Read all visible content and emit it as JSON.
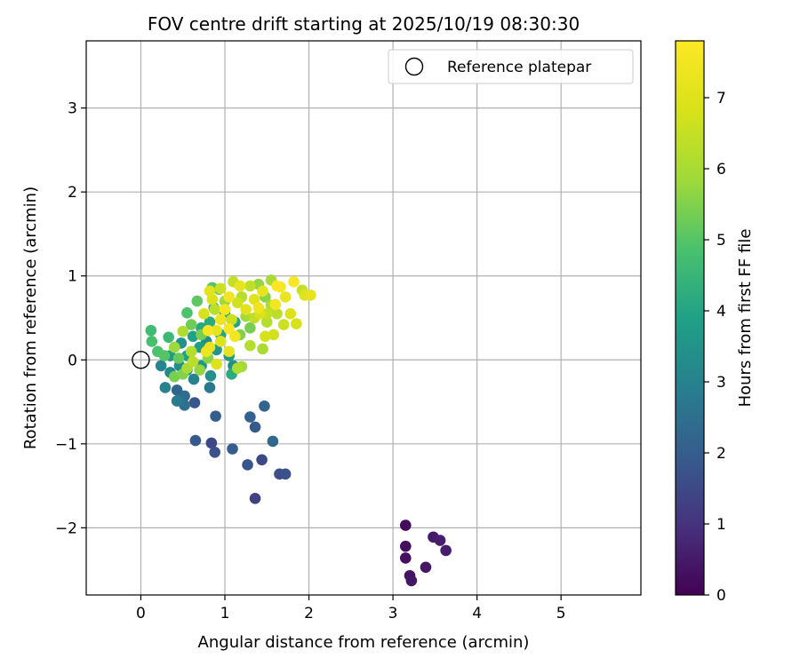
{
  "chart_data": {
    "type": "scatter",
    "title": "FOV centre drift starting at 2025/10/19 08:30:30",
    "xlabel": "Angular distance from reference (arcmin)",
    "ylabel": "Rotation from reference (arcmin)",
    "xlim": [
      -0.65,
      5.95
    ],
    "ylim": [
      -2.8,
      3.8
    ],
    "xticks": [
      0,
      1,
      2,
      3,
      4,
      5
    ],
    "yticks": [
      -2,
      -1,
      0,
      1,
      2,
      3
    ],
    "grid": true,
    "legend": {
      "position": "top-right",
      "entries": [
        {
          "label": "Reference platepar",
          "marker": "open-circle"
        }
      ]
    },
    "reference": {
      "x": 0,
      "y": 0
    },
    "colorbar": {
      "label": "Hours from first FF file",
      "min": 0,
      "max": 7.8,
      "ticks": [
        0,
        1,
        2,
        3,
        4,
        5,
        6,
        7
      ],
      "colormap": "viridis"
    },
    "points": [
      {
        "x": 3.15,
        "y": -1.97,
        "c": 0.2
      },
      {
        "x": 3.15,
        "y": -2.22,
        "c": 0.25
      },
      {
        "x": 3.15,
        "y": -2.36,
        "c": 0.3
      },
      {
        "x": 3.2,
        "y": -2.57,
        "c": 0.35
      },
      {
        "x": 3.22,
        "y": -2.63,
        "c": 0.4
      },
      {
        "x": 3.39,
        "y": -2.47,
        "c": 0.45
      },
      {
        "x": 3.48,
        "y": -2.11,
        "c": 0.5
      },
      {
        "x": 3.56,
        "y": -2.15,
        "c": 0.55
      },
      {
        "x": 3.63,
        "y": -2.27,
        "c": 0.6
      },
      {
        "x": 1.36,
        "y": -1.65,
        "c": 1.3
      },
      {
        "x": 1.44,
        "y": -1.19,
        "c": 1.5
      },
      {
        "x": 1.65,
        "y": -1.36,
        "c": 1.6
      },
      {
        "x": 1.72,
        "y": -1.36,
        "c": 1.7
      },
      {
        "x": 1.27,
        "y": -1.25,
        "c": 1.8
      },
      {
        "x": 0.84,
        "y": -0.99,
        "c": 1.5
      },
      {
        "x": 0.88,
        "y": -1.1,
        "c": 1.7
      },
      {
        "x": 0.65,
        "y": -0.96,
        "c": 1.9
      },
      {
        "x": 1.09,
        "y": -1.06,
        "c": 2.0
      },
      {
        "x": 1.36,
        "y": -0.8,
        "c": 1.9
      },
      {
        "x": 1.3,
        "y": -0.68,
        "c": 2.1
      },
      {
        "x": 1.47,
        "y": -0.55,
        "c": 2.2
      },
      {
        "x": 1.57,
        "y": -0.97,
        "c": 2.3
      },
      {
        "x": 0.89,
        "y": -0.67,
        "c": 2.0
      },
      {
        "x": 0.64,
        "y": -0.51,
        "c": 1.8
      },
      {
        "x": 0.43,
        "y": -0.36,
        "c": 2.2
      },
      {
        "x": 0.52,
        "y": -0.43,
        "c": 2.4
      },
      {
        "x": 0.45,
        "y": -0.48,
        "c": 2.6
      },
      {
        "x": 0.52,
        "y": -0.54,
        "c": 2.5
      },
      {
        "x": 0.43,
        "y": -0.49,
        "c": 2.8
      },
      {
        "x": 0.29,
        "y": -0.33,
        "c": 3.0
      },
      {
        "x": 0.82,
        "y": -0.33,
        "c": 2.7
      },
      {
        "x": 0.63,
        "y": -0.23,
        "c": 3.0
      },
      {
        "x": 0.35,
        "y": -0.15,
        "c": 3.2
      },
      {
        "x": 0.24,
        "y": -0.07,
        "c": 3.1
      },
      {
        "x": 0.46,
        "y": -0.07,
        "c": 3.3
      },
      {
        "x": 0.55,
        "y": -0.12,
        "c": 3.5
      },
      {
        "x": 0.83,
        "y": -0.19,
        "c": 3.4
      },
      {
        "x": 0.72,
        "y": -0.07,
        "c": 3.6
      },
      {
        "x": 1.1,
        "y": -0.07,
        "c": 3.4
      },
      {
        "x": 0.35,
        "y": 0.05,
        "c": 3.7
      },
      {
        "x": 0.55,
        "y": 0.05,
        "c": 3.9
      },
      {
        "x": 0.7,
        "y": 0.15,
        "c": 3.8
      },
      {
        "x": 0.48,
        "y": 0.2,
        "c": 3.5
      },
      {
        "x": 0.62,
        "y": 0.28,
        "c": 3.9
      },
      {
        "x": 0.78,
        "y": 0.22,
        "c": 3.3
      },
      {
        "x": 0.9,
        "y": 0.12,
        "c": 3.6
      },
      {
        "x": 1.05,
        "y": 0.05,
        "c": 3.7
      },
      {
        "x": 0.72,
        "y": 0.38,
        "c": 4.1
      },
      {
        "x": 0.95,
        "y": 0.3,
        "c": 4.0
      },
      {
        "x": 0.82,
        "y": 0.45,
        "c": 4.2
      },
      {
        "x": 1.0,
        "y": 0.55,
        "c": 4.3
      },
      {
        "x": 1.12,
        "y": 0.45,
        "c": 4.0
      },
      {
        "x": 0.87,
        "y": 0.62,
        "c": 4.4
      },
      {
        "x": 1.08,
        "y": -0.17,
        "c": 4.2
      },
      {
        "x": 0.33,
        "y": 0.27,
        "c": 4.6
      },
      {
        "x": 0.12,
        "y": 0.35,
        "c": 4.7
      },
      {
        "x": 0.13,
        "y": 0.22,
        "c": 4.8
      },
      {
        "x": 0.2,
        "y": 0.1,
        "c": 4.9
      },
      {
        "x": 0.28,
        "y": 0.05,
        "c": 5.0
      },
      {
        "x": 0.55,
        "y": 0.56,
        "c": 4.9
      },
      {
        "x": 0.67,
        "y": 0.7,
        "c": 5.1
      },
      {
        "x": 0.85,
        "y": 0.86,
        "c": 5.0
      },
      {
        "x": 0.93,
        "y": 0.84,
        "c": 5.2
      },
      {
        "x": 0.6,
        "y": 0.42,
        "c": 5.3
      },
      {
        "x": 0.72,
        "y": 0.3,
        "c": 5.4
      },
      {
        "x": 0.45,
        "y": 0.02,
        "c": 5.2
      },
      {
        "x": 0.5,
        "y": -0.17,
        "c": 5.5
      },
      {
        "x": 0.4,
        "y": -0.2,
        "c": 5.4
      },
      {
        "x": 0.8,
        "y": 0.02,
        "c": 5.6
      },
      {
        "x": 1.18,
        "y": 0.3,
        "c": 5.5
      },
      {
        "x": 1.3,
        "y": 0.38,
        "c": 5.4
      },
      {
        "x": 1.2,
        "y": -0.08,
        "c": 5.9
      },
      {
        "x": 1.15,
        "y": -0.1,
        "c": 6.1
      },
      {
        "x": 0.55,
        "y": -0.1,
        "c": 6.0
      },
      {
        "x": 0.6,
        "y": 0.1,
        "c": 6.2
      },
      {
        "x": 0.5,
        "y": 0.34,
        "c": 6.1
      },
      {
        "x": 1.3,
        "y": 0.17,
        "c": 6.2
      },
      {
        "x": 1.45,
        "y": 0.13,
        "c": 6.0
      },
      {
        "x": 0.88,
        "y": 0.6,
        "c": 6.3
      },
      {
        "x": 1.0,
        "y": 0.7,
        "c": 5.8
      },
      {
        "x": 1.25,
        "y": 0.52,
        "c": 5.9
      },
      {
        "x": 1.4,
        "y": 0.9,
        "c": 5.7
      },
      {
        "x": 1.48,
        "y": 0.75,
        "c": 5.6
      },
      {
        "x": 1.55,
        "y": 0.95,
        "c": 6.0
      },
      {
        "x": 1.2,
        "y": 0.75,
        "c": 6.2
      },
      {
        "x": 1.1,
        "y": 0.93,
        "c": 6.5
      },
      {
        "x": 1.35,
        "y": 0.5,
        "c": 6.4
      },
      {
        "x": 1.5,
        "y": 0.45,
        "c": 6.2
      },
      {
        "x": 1.62,
        "y": 0.55,
        "c": 6.3
      },
      {
        "x": 1.7,
        "y": 0.42,
        "c": 6.6
      },
      {
        "x": 1.58,
        "y": 0.3,
        "c": 6.7
      },
      {
        "x": 1.48,
        "y": 0.28,
        "c": 6.8
      },
      {
        "x": 1.78,
        "y": 0.55,
        "c": 6.9
      },
      {
        "x": 1.85,
        "y": 0.43,
        "c": 6.8
      },
      {
        "x": 1.92,
        "y": 0.83,
        "c": 6.5
      },
      {
        "x": 1.95,
        "y": 0.77,
        "c": 7.0
      },
      {
        "x": 2.02,
        "y": 0.77,
        "c": 7.2
      },
      {
        "x": 1.72,
        "y": 0.75,
        "c": 7.3
      },
      {
        "x": 1.82,
        "y": 0.93,
        "c": 7.7
      },
      {
        "x": 1.66,
        "y": 0.87,
        "c": 7.6
      },
      {
        "x": 1.6,
        "y": 0.66,
        "c": 7.5
      },
      {
        "x": 1.4,
        "y": 0.62,
        "c": 7.4
      },
      {
        "x": 1.45,
        "y": 0.82,
        "c": 7.2
      },
      {
        "x": 1.35,
        "y": 0.72,
        "c": 7.0
      },
      {
        "x": 1.25,
        "y": 0.6,
        "c": 7.1
      },
      {
        "x": 1.18,
        "y": 0.88,
        "c": 7.3
      },
      {
        "x": 1.05,
        "y": 0.75,
        "c": 7.5
      },
      {
        "x": 1.0,
        "y": 0.6,
        "c": 7.6
      },
      {
        "x": 0.95,
        "y": 0.48,
        "c": 7.4
      },
      {
        "x": 0.9,
        "y": 0.35,
        "c": 7.2
      },
      {
        "x": 0.95,
        "y": 0.22,
        "c": 7.0
      },
      {
        "x": 1.05,
        "y": 0.37,
        "c": 7.7
      },
      {
        "x": 1.12,
        "y": 0.28,
        "c": 7.5
      },
      {
        "x": 0.82,
        "y": 0.15,
        "c": 7.3
      },
      {
        "x": 0.8,
        "y": 0.35,
        "c": 7.6
      },
      {
        "x": 0.75,
        "y": 0.55,
        "c": 6.8
      },
      {
        "x": 0.85,
        "y": 0.72,
        "c": 6.9
      },
      {
        "x": 0.82,
        "y": 0.82,
        "c": 7.1
      },
      {
        "x": 1.08,
        "y": 0.48,
        "c": 6.6
      },
      {
        "x": 1.15,
        "y": 0.68,
        "c": 6.7
      },
      {
        "x": 1.3,
        "y": 0.88,
        "c": 6.4
      },
      {
        "x": 1.42,
        "y": 0.55,
        "c": 6.9
      },
      {
        "x": 1.55,
        "y": 0.65,
        "c": 6.1
      },
      {
        "x": 1.5,
        "y": 0.55,
        "c": 6.5
      },
      {
        "x": 1.62,
        "y": 0.88,
        "c": 7.8
      },
      {
        "x": 0.78,
        "y": 0.1,
        "c": 7.4
      },
      {
        "x": 0.9,
        "y": -0.05,
        "c": 7.0
      },
      {
        "x": 1.05,
        "y": 0.1,
        "c": 7.2
      },
      {
        "x": 0.62,
        "y": -0.02,
        "c": 6.3
      },
      {
        "x": 0.7,
        "y": -0.12,
        "c": 5.7
      },
      {
        "x": 0.4,
        "y": 0.15,
        "c": 5.8
      },
      {
        "x": 0.95,
        "y": 0.85,
        "c": 6.6
      }
    ]
  }
}
